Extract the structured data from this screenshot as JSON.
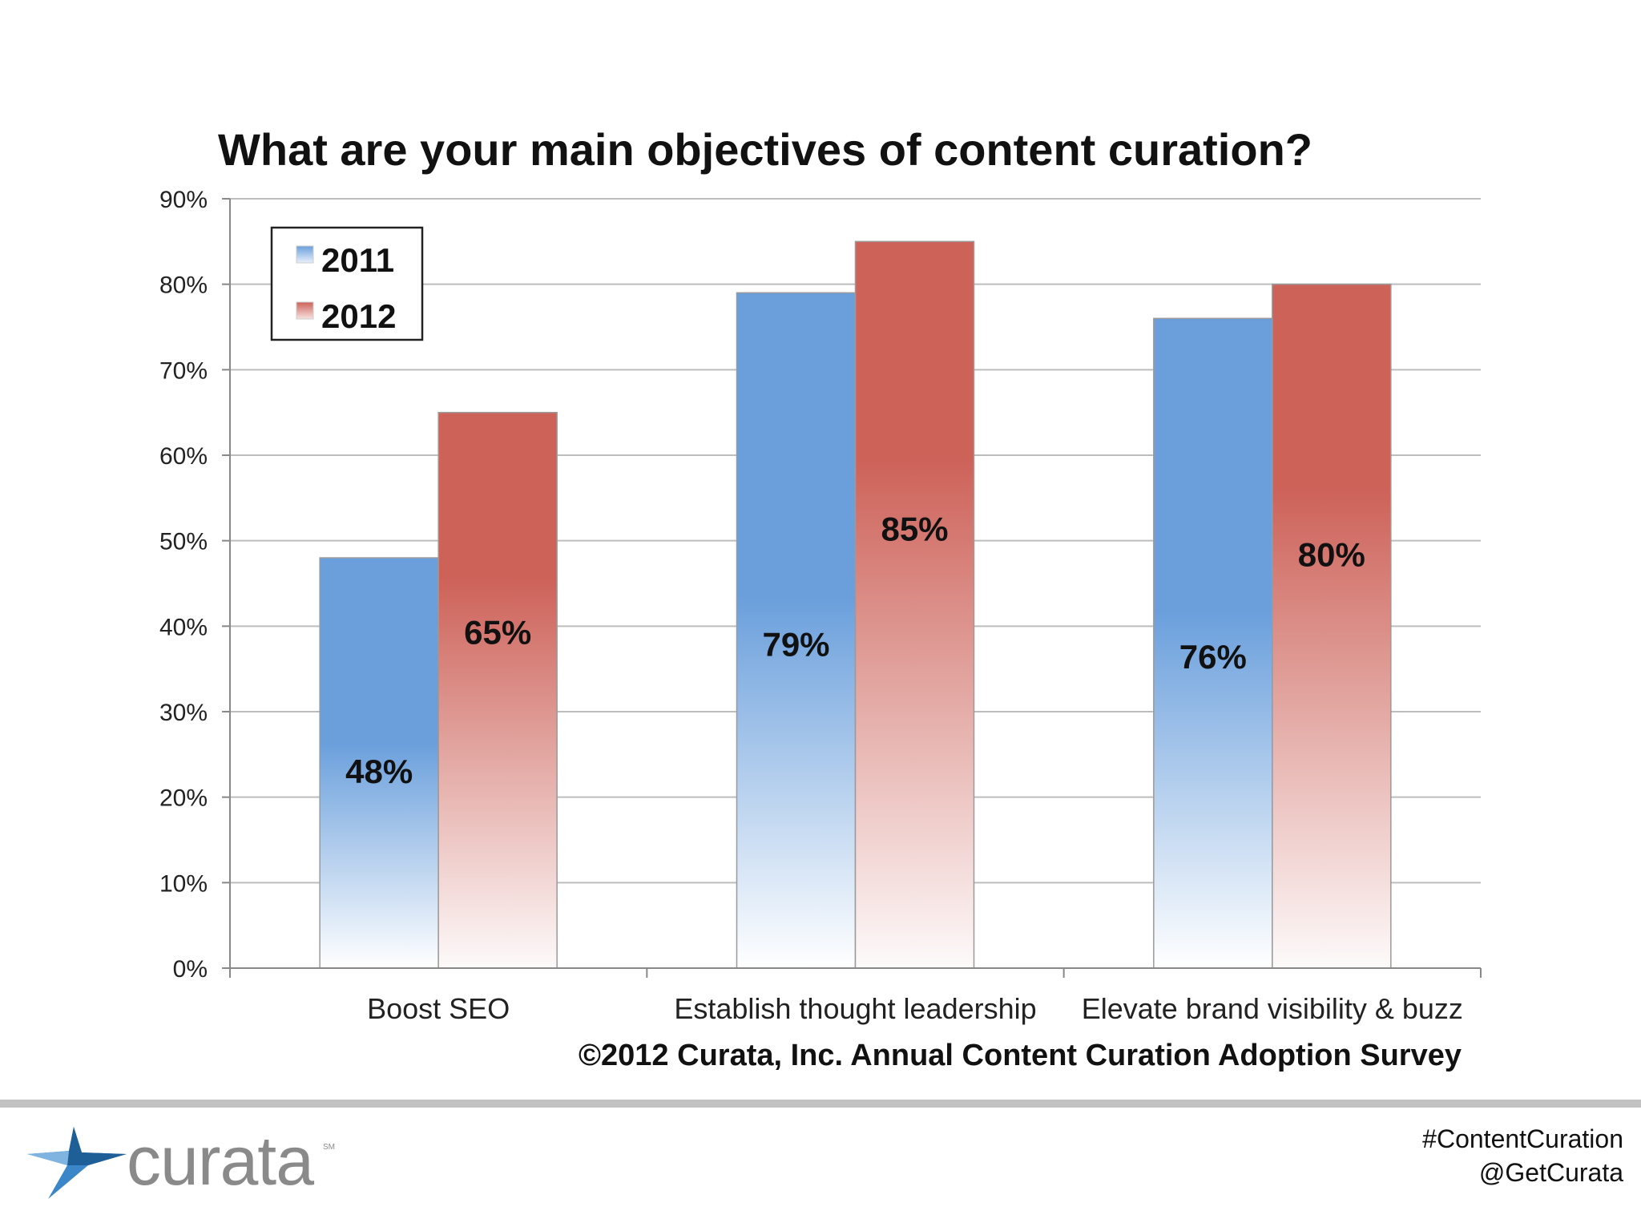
{
  "chart_data": {
    "type": "bar",
    "title": "What are your main objectives of content curation?",
    "categories": [
      "Boost SEO",
      "Establish thought leadership",
      "Elevate brand visibility & buzz"
    ],
    "series": [
      {
        "name": "2011",
        "values": [
          48,
          79,
          76
        ],
        "labels": [
          "48%",
          "79%",
          "76%"
        ],
        "color": "#6a9fdc"
      },
      {
        "name": "2012",
        "values": [
          65,
          85,
          80
        ],
        "labels": [
          "65%",
          "85%",
          "80%"
        ],
        "color": "#cd6259"
      }
    ],
    "ylim": [
      0,
      90
    ],
    "y_ticks": [
      "0%",
      "10%",
      "20%",
      "30%",
      "40%",
      "50%",
      "60%",
      "70%",
      "80%",
      "90%"
    ],
    "xlabel": "",
    "ylabel": "",
    "grid": true,
    "legend_position": "top-left"
  },
  "source": "©2012 Curata, Inc. Annual Content Curation Adoption Survey",
  "footer": {
    "logo_text": "curata",
    "logo_mark": "SM",
    "hashtag": "#ContentCuration",
    "handle": "@GetCurata"
  }
}
